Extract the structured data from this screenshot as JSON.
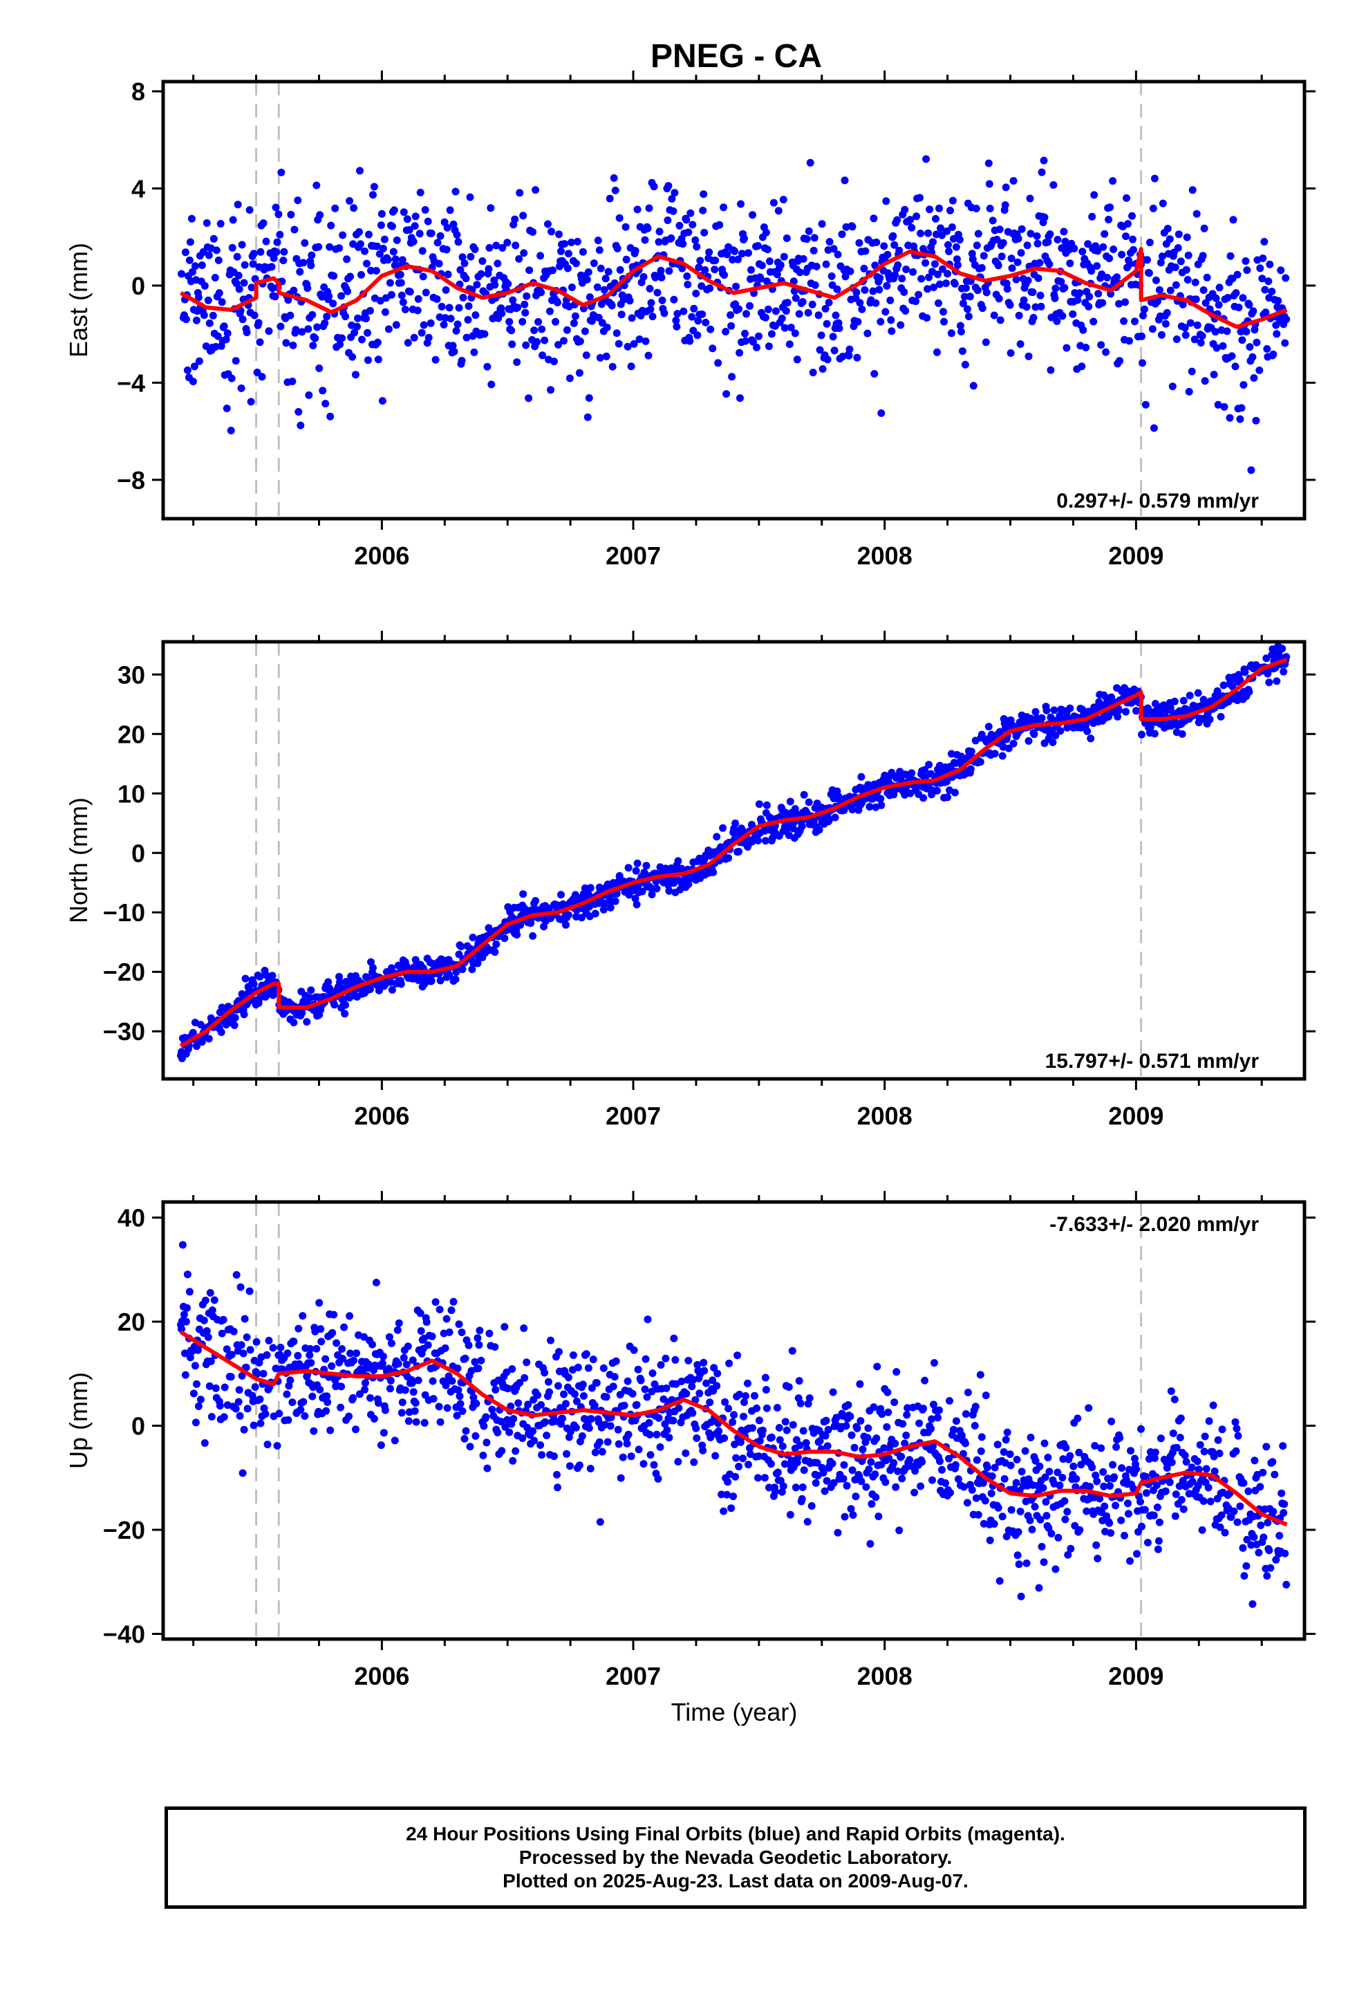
{
  "title": "PNEG - CA",
  "xlabel": "Time (year)",
  "colors": {
    "final_orbits": "#0000ff",
    "model_fit": "#ff0000",
    "event_line": "#c0c0c0",
    "axes": "#000000"
  },
  "footer": {
    "line1": "24 Hour Positions Using Final Orbits (blue) and Rapid Orbits (magenta).",
    "line2": "Processed by the Nevada Geodetic Laboratory.",
    "line3": "Plotted on 2025-Aug-23. Last data on 2009-Aug-07."
  },
  "chart_data": [
    {
      "type": "scatter",
      "component": "east",
      "ylabel": "East (mm)",
      "rate_label": "0.297+/- 0.579 mm/yr",
      "xlim": [
        2005.13,
        2009.67
      ],
      "ylim": [
        -9.6,
        8.4
      ],
      "yticks": [
        8,
        4,
        0,
        -4,
        -8
      ],
      "ytick_labels": [
        "8",
        "4",
        "0",
        "−4",
        "−8"
      ],
      "xticks": [
        2006,
        2007,
        2008,
        2009
      ],
      "event_lines": [
        2005.5,
        2005.59,
        2009.02
      ],
      "data_range": [
        2005.2,
        2009.6
      ],
      "noise_sd": 1.8,
      "fit": [
        {
          "x": 2005.2,
          "y": -0.3
        },
        {
          "x": 2005.3,
          "y": -0.9
        },
        {
          "x": 2005.4,
          "y": -1.0
        },
        {
          "x": 2005.5,
          "y": -0.5
        },
        {
          "x": 2005.5,
          "y": 0.1
        },
        {
          "x": 2005.57,
          "y": 0.3
        },
        {
          "x": 2005.59,
          "y": 0.1
        },
        {
          "x": 2005.59,
          "y": -0.3
        },
        {
          "x": 2005.7,
          "y": -0.6
        },
        {
          "x": 2005.8,
          "y": -1.1
        },
        {
          "x": 2005.9,
          "y": -0.6
        },
        {
          "x": 2006.0,
          "y": 0.4
        },
        {
          "x": 2006.1,
          "y": 0.8
        },
        {
          "x": 2006.2,
          "y": 0.6
        },
        {
          "x": 2006.3,
          "y": -0.1
        },
        {
          "x": 2006.4,
          "y": -0.5
        },
        {
          "x": 2006.5,
          "y": -0.3
        },
        {
          "x": 2006.6,
          "y": 0.1
        },
        {
          "x": 2006.7,
          "y": -0.2
        },
        {
          "x": 2006.8,
          "y": -0.8
        },
        {
          "x": 2006.9,
          "y": -0.4
        },
        {
          "x": 2007.0,
          "y": 0.6
        },
        {
          "x": 2007.1,
          "y": 1.2
        },
        {
          "x": 2007.2,
          "y": 0.9
        },
        {
          "x": 2007.3,
          "y": 0.2
        },
        {
          "x": 2007.4,
          "y": -0.3
        },
        {
          "x": 2007.5,
          "y": -0.1
        },
        {
          "x": 2007.6,
          "y": 0.1
        },
        {
          "x": 2007.7,
          "y": -0.2
        },
        {
          "x": 2007.8,
          "y": -0.5
        },
        {
          "x": 2007.9,
          "y": 0.1
        },
        {
          "x": 2008.0,
          "y": 0.9
        },
        {
          "x": 2008.1,
          "y": 1.4
        },
        {
          "x": 2008.2,
          "y": 1.2
        },
        {
          "x": 2008.3,
          "y": 0.5
        },
        {
          "x": 2008.4,
          "y": 0.2
        },
        {
          "x": 2008.5,
          "y": 0.4
        },
        {
          "x": 2008.6,
          "y": 0.7
        },
        {
          "x": 2008.7,
          "y": 0.6
        },
        {
          "x": 2008.8,
          "y": 0.1
        },
        {
          "x": 2008.9,
          "y": -0.2
        },
        {
          "x": 2009.0,
          "y": 0.6
        },
        {
          "x": 2009.02,
          "y": 1.5
        },
        {
          "x": 2009.02,
          "y": -0.6
        },
        {
          "x": 2009.1,
          "y": -0.4
        },
        {
          "x": 2009.2,
          "y": -0.6
        },
        {
          "x": 2009.3,
          "y": -1.2
        },
        {
          "x": 2009.4,
          "y": -1.7
        },
        {
          "x": 2009.5,
          "y": -1.4
        },
        {
          "x": 2009.6,
          "y": -1.0
        }
      ]
    },
    {
      "type": "scatter",
      "component": "north",
      "ylabel": "North (mm)",
      "rate_label": "15.797+/- 0.571 mm/yr",
      "xlim": [
        2005.13,
        2009.67
      ],
      "ylim": [
        -38,
        35.5
      ],
      "yticks": [
        30,
        20,
        10,
        0,
        -10,
        -20,
        -30
      ],
      "ytick_labels": [
        "30",
        "20",
        "10",
        "0",
        "−10",
        "−20",
        "−30"
      ],
      "xticks": [
        2006,
        2007,
        2008,
        2009
      ],
      "event_lines": [
        2005.5,
        2005.59,
        2009.02
      ],
      "data_range": [
        2005.2,
        2009.6
      ],
      "noise_sd": 1.3,
      "fit": [
        {
          "x": 2005.2,
          "y": -32.5
        },
        {
          "x": 2005.3,
          "y": -30
        },
        {
          "x": 2005.4,
          "y": -26.5
        },
        {
          "x": 2005.5,
          "y": -23.5
        },
        {
          "x": 2005.57,
          "y": -22
        },
        {
          "x": 2005.59,
          "y": -22
        },
        {
          "x": 2005.59,
          "y": -26
        },
        {
          "x": 2005.7,
          "y": -26
        },
        {
          "x": 2005.8,
          "y": -24.5
        },
        {
          "x": 2005.9,
          "y": -22.5
        },
        {
          "x": 2006.0,
          "y": -21
        },
        {
          "x": 2006.1,
          "y": -20
        },
        {
          "x": 2006.2,
          "y": -20
        },
        {
          "x": 2006.3,
          "y": -19
        },
        {
          "x": 2006.4,
          "y": -15.5
        },
        {
          "x": 2006.5,
          "y": -12
        },
        {
          "x": 2006.6,
          "y": -10.5
        },
        {
          "x": 2006.7,
          "y": -10
        },
        {
          "x": 2006.8,
          "y": -8.5
        },
        {
          "x": 2006.9,
          "y": -6.5
        },
        {
          "x": 2007.0,
          "y": -5
        },
        {
          "x": 2007.1,
          "y": -4
        },
        {
          "x": 2007.2,
          "y": -3.5
        },
        {
          "x": 2007.3,
          "y": -2
        },
        {
          "x": 2007.4,
          "y": 1.5
        },
        {
          "x": 2007.5,
          "y": 4.5
        },
        {
          "x": 2007.6,
          "y": 5.5
        },
        {
          "x": 2007.7,
          "y": 6
        },
        {
          "x": 2007.8,
          "y": 7.5
        },
        {
          "x": 2007.9,
          "y": 9.5
        },
        {
          "x": 2008.0,
          "y": 11
        },
        {
          "x": 2008.1,
          "y": 11.8
        },
        {
          "x": 2008.2,
          "y": 12.2
        },
        {
          "x": 2008.3,
          "y": 14
        },
        {
          "x": 2008.4,
          "y": 17.5
        },
        {
          "x": 2008.5,
          "y": 20.5
        },
        {
          "x": 2008.6,
          "y": 21.5
        },
        {
          "x": 2008.7,
          "y": 21.8
        },
        {
          "x": 2008.8,
          "y": 22.5
        },
        {
          "x": 2008.9,
          "y": 24.5
        },
        {
          "x": 2009.0,
          "y": 26.5
        },
        {
          "x": 2009.02,
          "y": 27
        },
        {
          "x": 2009.02,
          "y": 22.5
        },
        {
          "x": 2009.1,
          "y": 22.5
        },
        {
          "x": 2009.2,
          "y": 23
        },
        {
          "x": 2009.3,
          "y": 24.5
        },
        {
          "x": 2009.4,
          "y": 27.5
        },
        {
          "x": 2009.5,
          "y": 31
        },
        {
          "x": 2009.6,
          "y": 32.5
        }
      ]
    },
    {
      "type": "scatter",
      "component": "up",
      "ylabel": "Up (mm)",
      "rate_label": "-7.633+/- 2.020 mm/yr",
      "xlim": [
        2005.13,
        2009.67
      ],
      "ylim": [
        -41,
        43
      ],
      "yticks": [
        40,
        20,
        0,
        -20,
        -40
      ],
      "ytick_labels": [
        "40",
        "20",
        "0",
        "−20",
        "−40"
      ],
      "xticks": [
        2006,
        2007,
        2008,
        2009
      ],
      "event_lines": [
        2005.5,
        2005.59,
        2009.02
      ],
      "data_range": [
        2005.2,
        2009.6
      ],
      "noise_sd": 6.5,
      "fit": [
        {
          "x": 2005.2,
          "y": 18
        },
        {
          "x": 2005.3,
          "y": 15
        },
        {
          "x": 2005.4,
          "y": 12
        },
        {
          "x": 2005.5,
          "y": 9
        },
        {
          "x": 2005.57,
          "y": 8
        },
        {
          "x": 2005.59,
          "y": 10
        },
        {
          "x": 2005.7,
          "y": 10.5
        },
        {
          "x": 2005.8,
          "y": 10
        },
        {
          "x": 2005.9,
          "y": 9.5
        },
        {
          "x": 2006.0,
          "y": 9.5
        },
        {
          "x": 2006.1,
          "y": 10.5
        },
        {
          "x": 2006.2,
          "y": 12.5
        },
        {
          "x": 2006.3,
          "y": 10
        },
        {
          "x": 2006.4,
          "y": 6
        },
        {
          "x": 2006.5,
          "y": 3
        },
        {
          "x": 2006.6,
          "y": 2
        },
        {
          "x": 2006.7,
          "y": 2.5
        },
        {
          "x": 2006.8,
          "y": 3
        },
        {
          "x": 2006.9,
          "y": 2.5
        },
        {
          "x": 2007.0,
          "y": 2
        },
        {
          "x": 2007.1,
          "y": 3
        },
        {
          "x": 2007.2,
          "y": 5
        },
        {
          "x": 2007.3,
          "y": 3
        },
        {
          "x": 2007.4,
          "y": -1
        },
        {
          "x": 2007.5,
          "y": -4
        },
        {
          "x": 2007.6,
          "y": -5.5
        },
        {
          "x": 2007.7,
          "y": -5
        },
        {
          "x": 2007.8,
          "y": -5
        },
        {
          "x": 2007.9,
          "y": -6
        },
        {
          "x": 2008.0,
          "y": -5.5
        },
        {
          "x": 2008.1,
          "y": -4
        },
        {
          "x": 2008.2,
          "y": -3
        },
        {
          "x": 2008.3,
          "y": -6
        },
        {
          "x": 2008.4,
          "y": -10
        },
        {
          "x": 2008.5,
          "y": -13
        },
        {
          "x": 2008.6,
          "y": -13.5
        },
        {
          "x": 2008.7,
          "y": -12.5
        },
        {
          "x": 2008.8,
          "y": -12.5
        },
        {
          "x": 2008.9,
          "y": -13.5
        },
        {
          "x": 2009.0,
          "y": -13
        },
        {
          "x": 2009.02,
          "y": -11
        },
        {
          "x": 2009.1,
          "y": -10
        },
        {
          "x": 2009.2,
          "y": -9
        },
        {
          "x": 2009.3,
          "y": -9.5
        },
        {
          "x": 2009.4,
          "y": -13
        },
        {
          "x": 2009.5,
          "y": -17
        },
        {
          "x": 2009.6,
          "y": -19
        }
      ]
    }
  ]
}
